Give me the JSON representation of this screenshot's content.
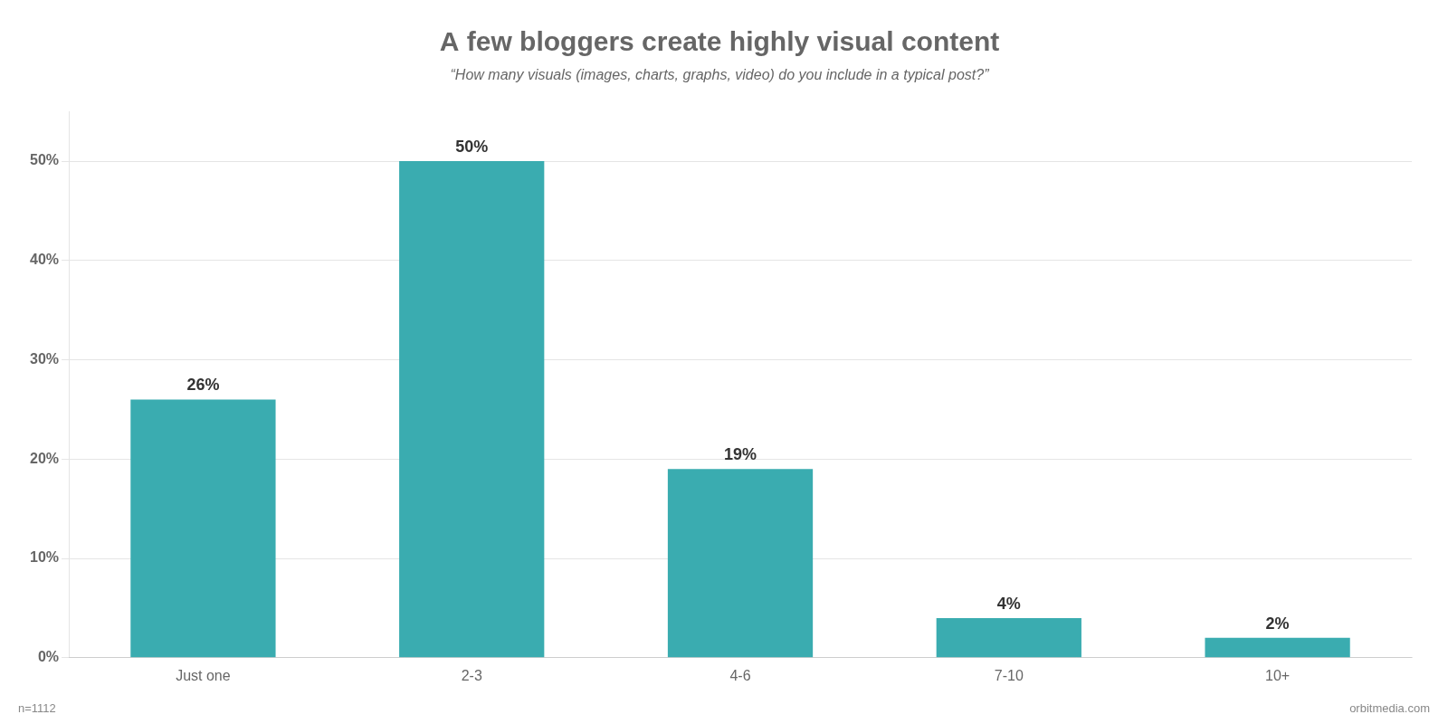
{
  "chart_data": {
    "type": "bar",
    "title": "A few bloggers create highly visual content",
    "subtitle": "“How many visuals (images, charts, graphs, video) do you include in a typical post?”",
    "categories": [
      "Just one",
      "2-3",
      "4-6",
      "7-10",
      "10+"
    ],
    "values": [
      26,
      50,
      19,
      4,
      2
    ],
    "value_labels": [
      "26%",
      "50%",
      "19%",
      "4%",
      "2%"
    ],
    "data_labels": true,
    "color": "#3aacb0",
    "ylim": [
      0,
      55
    ],
    "yticks": [
      {
        "value": 0,
        "label": "0%"
      },
      {
        "value": 10,
        "label": "10%"
      },
      {
        "value": 20,
        "label": "20%"
      },
      {
        "value": 30,
        "label": "30%"
      },
      {
        "value": 40,
        "label": "40%"
      },
      {
        "value": 50,
        "label": "50%"
      }
    ],
    "grid": true,
    "annotations": [
      "n=1112",
      "orbitmedia.com"
    ]
  }
}
